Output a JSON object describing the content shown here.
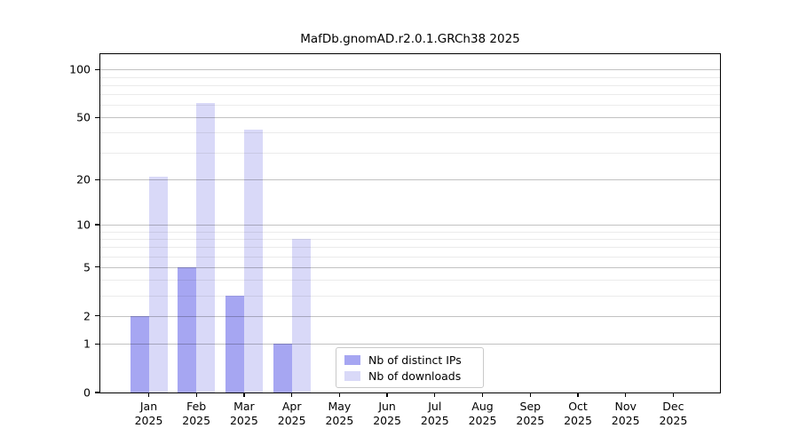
{
  "chart_data": {
    "type": "bar",
    "title": "MafDb.gnomAD.r2.0.1.GRCh38 2025",
    "months": [
      "Jan",
      "Feb",
      "Mar",
      "Apr",
      "May",
      "Jun",
      "Jul",
      "Aug",
      "Sep",
      "Oct",
      "Nov",
      "Dec"
    ],
    "year": "2025",
    "categories": [
      "Jan 2025",
      "Feb 2025",
      "Mar 2025",
      "Apr 2025",
      "May 2025",
      "Jun 2025",
      "Jul 2025",
      "Aug 2025",
      "Sep 2025",
      "Oct 2025",
      "Nov 2025",
      "Dec 2025"
    ],
    "series": [
      {
        "name": "Nb of distinct IPs",
        "color": "#a6a6f2",
        "values": [
          2,
          5,
          3,
          1,
          0,
          0,
          0,
          0,
          0,
          0,
          0,
          0
        ]
      },
      {
        "name": "Nb of downloads",
        "color": "#d9d9f8",
        "values": [
          21,
          62,
          42,
          8,
          0,
          0,
          0,
          0,
          0,
          0,
          0,
          0
        ]
      }
    ],
    "yscale": "log1p",
    "ylim": [
      0,
      125
    ],
    "yticks": [
      0,
      1,
      2,
      5,
      10,
      20,
      50,
      100
    ],
    "minor_yticks": [
      3,
      4,
      6,
      7,
      8,
      9,
      30,
      40,
      60,
      70,
      80,
      90
    ],
    "grid": "horizontal",
    "legend": {
      "position": "lower center",
      "border_color": "#c9c9c9"
    },
    "colors": {
      "axis": "#000000",
      "major_grid": "#c4c4c4",
      "minor_grid": "#ececec",
      "background": "#ffffff"
    }
  }
}
